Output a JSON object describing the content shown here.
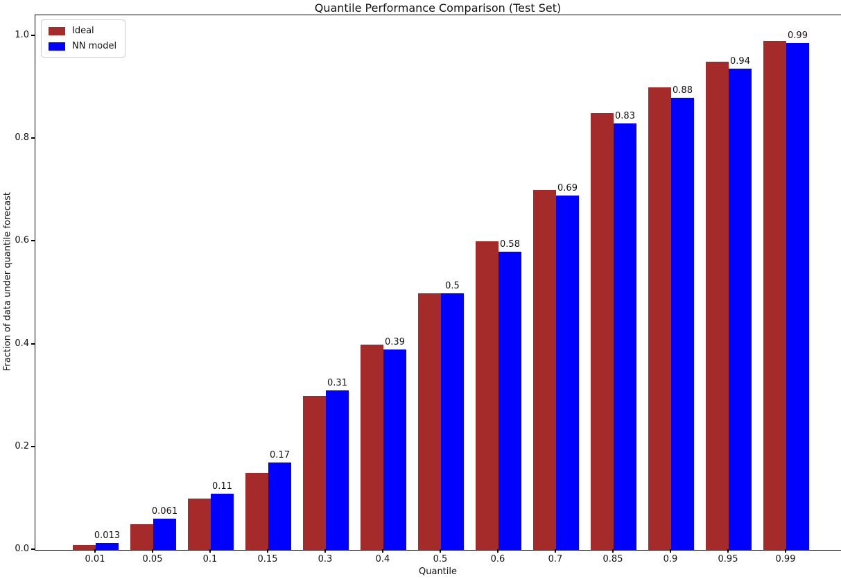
{
  "chart_data": {
    "type": "bar",
    "title": "Quantile Performance Comparison (Test Set)",
    "xlabel": "Quantile",
    "ylabel": "Fraction of data under quantile forecast",
    "categories": [
      "0.01",
      "0.05",
      "0.1",
      "0.15",
      "0.3",
      "0.4",
      "0.5",
      "0.6",
      "0.7",
      "0.85",
      "0.9",
      "0.95",
      "0.99"
    ],
    "series": [
      {
        "name": "Ideal",
        "color": "#a52a2a",
        "values": [
          0.01,
          0.05,
          0.1,
          0.15,
          0.3,
          0.4,
          0.5,
          0.6,
          0.7,
          0.85,
          0.9,
          0.95,
          0.99
        ]
      },
      {
        "name": "NN model",
        "color": "#0000ff",
        "values": [
          0.013,
          0.061,
          0.11,
          0.17,
          0.31,
          0.39,
          0.5,
          0.58,
          0.69,
          0.83,
          0.88,
          0.937,
          0.986
        ]
      }
    ],
    "bar_labels": [
      "0.013",
      "0.061",
      "0.11",
      "0.17",
      "0.31",
      "0.39",
      "0.5",
      "0.58",
      "0.69",
      "0.83",
      "0.88",
      "0.94",
      "0.99"
    ],
    "yticks": [
      "0.0",
      "0.2",
      "0.4",
      "0.6",
      "0.8",
      "1.0"
    ],
    "ylim": [
      0,
      1.04
    ],
    "grid": false,
    "legend_position": "upper left"
  }
}
